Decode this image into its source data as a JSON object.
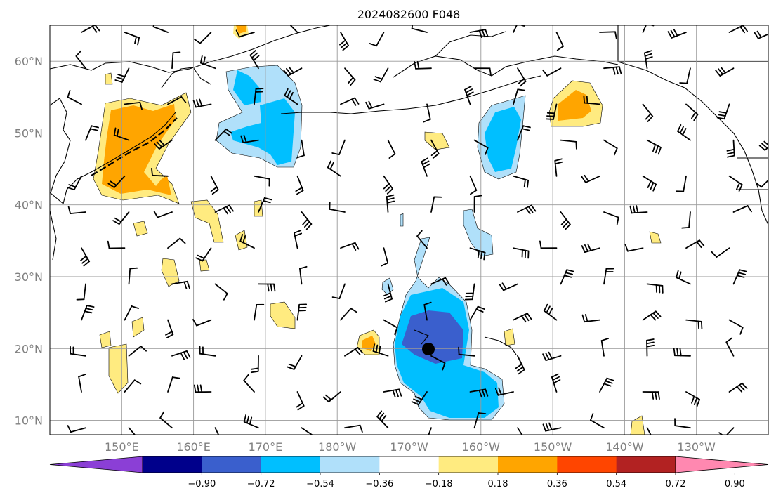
{
  "figure": {
    "title": "2024082600 F048"
  },
  "map": {
    "projection": "PlateCarree",
    "lon_range_deg_east": [
      140,
      240
    ],
    "lat_range": [
      8,
      65
    ],
    "lat_labels": [
      "10°N",
      "20°N",
      "30°N",
      "40°N",
      "50°N",
      "60°N"
    ],
    "lat_values": [
      10,
      20,
      30,
      40,
      50,
      60
    ],
    "lon_labels": [
      "150°E",
      "160°E",
      "170°E",
      "180°W",
      "170°W",
      "160°W",
      "150°W",
      "140°W",
      "130°W"
    ],
    "lon_values": [
      150,
      160,
      170,
      180,
      190,
      200,
      210,
      220,
      230
    ],
    "gridlines": true,
    "storm_center": {
      "lat": 20,
      "lon": 193
    },
    "positive_contour_color": "#ffeb80",
    "negative_contour_color": "#b0e0fa",
    "coast_color": "#000000"
  },
  "colorbar": {
    "tick_labels": [
      "−0.90",
      "−0.72",
      "−0.54",
      "−0.36",
      "−0.18",
      "0.18",
      "0.36",
      "0.54",
      "0.72",
      "0.90"
    ],
    "bin_colors": [
      "#8b3fd6",
      "#00008b",
      "#3a5fcd",
      "#00bfff",
      "#b0e0fa",
      "#ffffff",
      "#ffeb80",
      "#ffa500",
      "#ff4500",
      "#b22222",
      "#ff88b0"
    ],
    "extend": "both"
  }
}
